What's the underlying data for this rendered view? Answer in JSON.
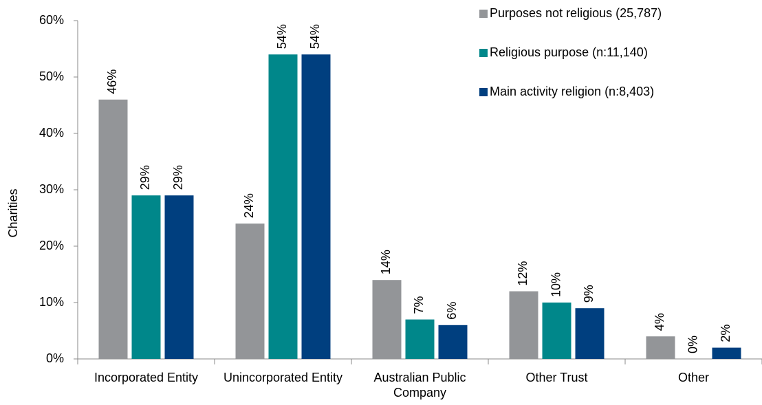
{
  "chart_data": {
    "type": "bar",
    "y_label": "Charities",
    "categories": [
      "Incorporated Entity",
      "Unincorporated Entity",
      "Australian Public Company",
      "Other Trust",
      "Other"
    ],
    "series": [
      {
        "name": "Purposes not religious (25,787)",
        "color": "#939598",
        "values": [
          46,
          24,
          14,
          12,
          4
        ],
        "value_labels": [
          "46%",
          "24%",
          "14%",
          "12%",
          "4%"
        ]
      },
      {
        "name": "Religious purpose (n:11,140)",
        "color": "#00878a",
        "values": [
          29,
          54,
          7,
          10,
          0
        ],
        "value_labels": [
          "29%",
          "54%",
          "7%",
          "10%",
          "0%"
        ]
      },
      {
        "name": "Main activity religion (n:8,403)",
        "color": "#003f7f",
        "values": [
          29,
          54,
          6,
          9,
          2
        ],
        "value_labels": [
          "29%",
          "54%",
          "6%",
          "9%",
          "2%"
        ]
      }
    ],
    "ylim": [
      0,
      60
    ],
    "yticks": [
      {
        "value": 0,
        "label": "0%"
      },
      {
        "value": 10,
        "label": "10%"
      },
      {
        "value": 20,
        "label": "20%"
      },
      {
        "value": 30,
        "label": "30%"
      },
      {
        "value": 40,
        "label": "40%"
      },
      {
        "value": 50,
        "label": "50%"
      },
      {
        "value": 60,
        "label": "60%"
      }
    ],
    "legend": "top-right"
  }
}
